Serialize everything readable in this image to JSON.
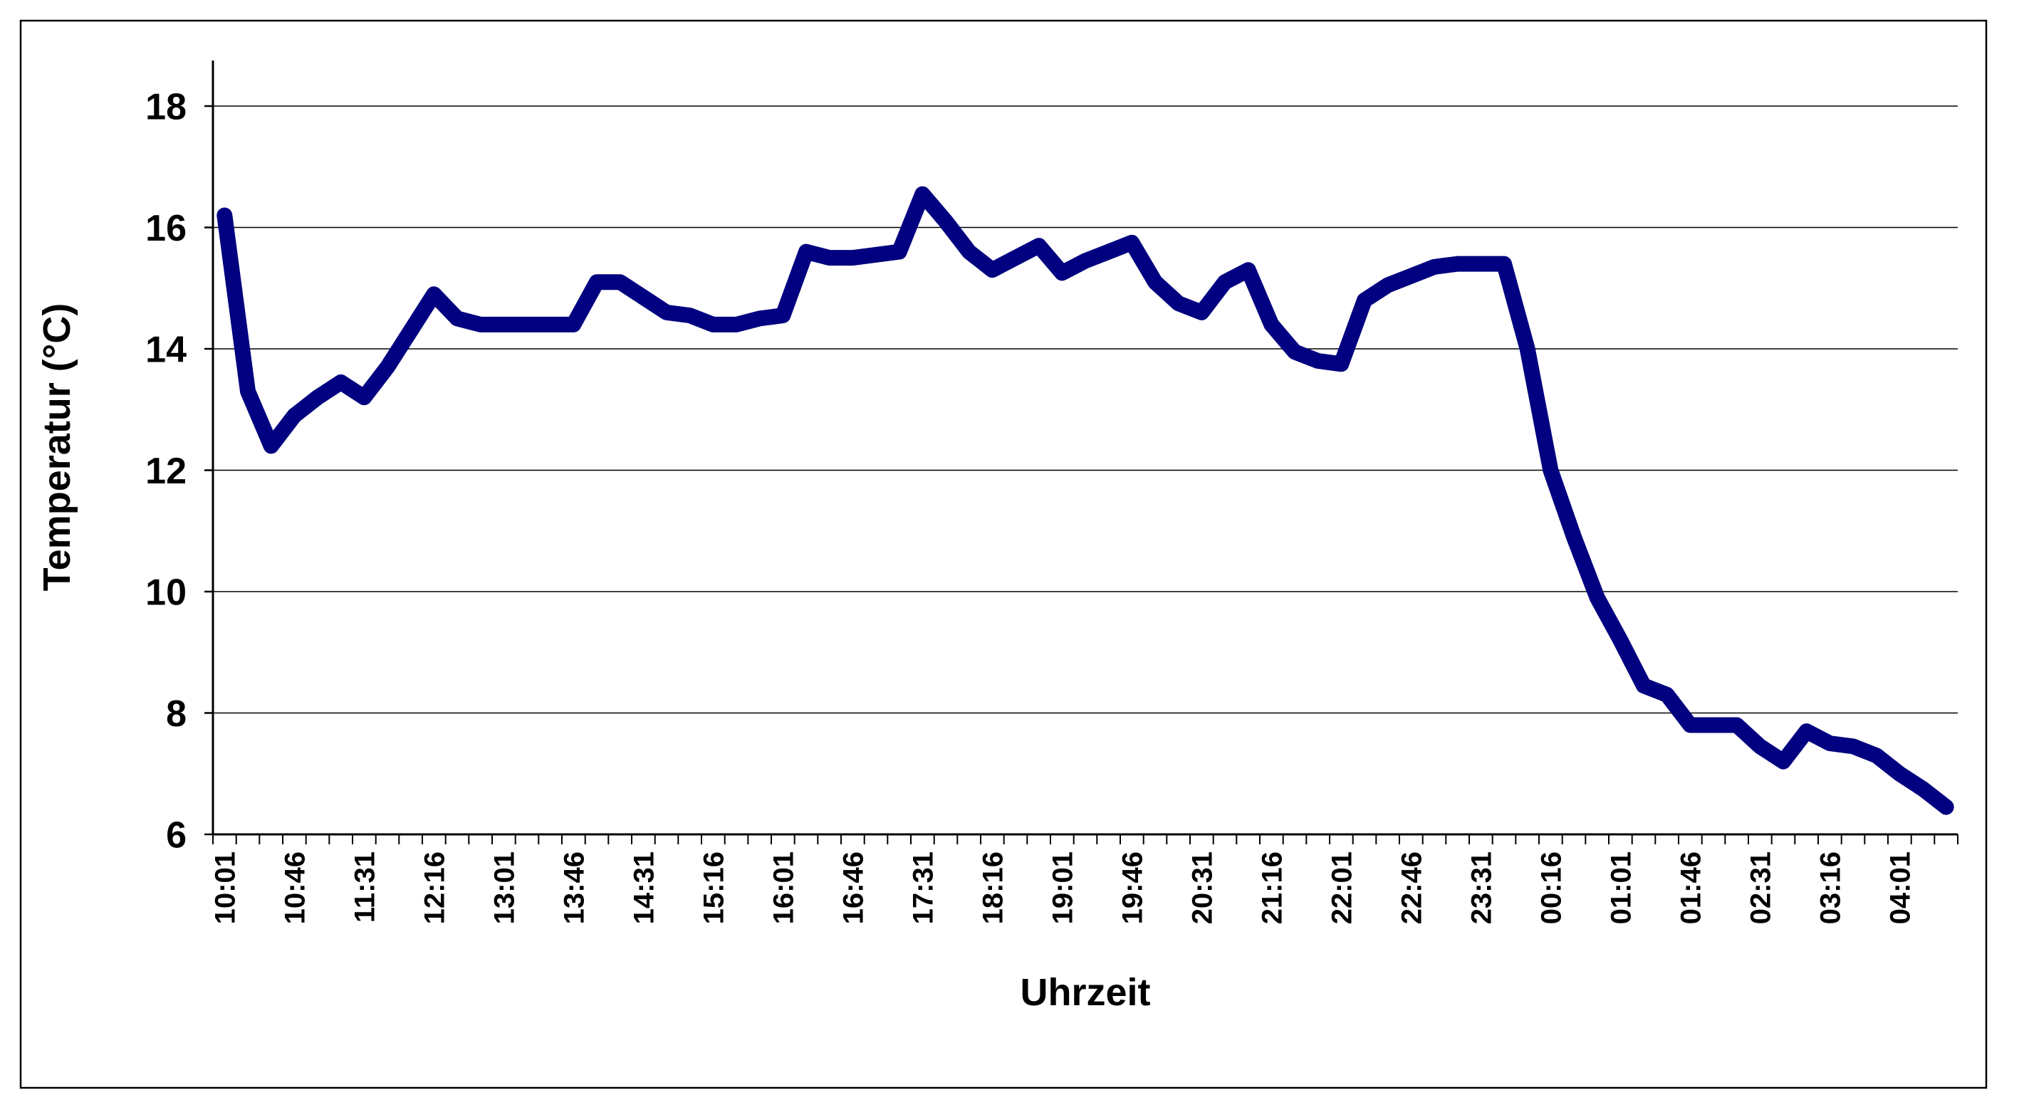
{
  "chart_data": {
    "type": "line",
    "title": "",
    "xlabel": "Uhrzeit",
    "ylabel": "Temperatur (°C)",
    "legend": "none",
    "grid": "horizontal",
    "background": "#ffffff",
    "frame_color": "#000000",
    "series_color": "#000080",
    "ylim": [
      6,
      18.75
    ],
    "yticks": [
      6,
      8,
      10,
      12,
      14,
      16,
      18
    ],
    "x_label_interval": 3,
    "x": [
      "10:01",
      "10:16",
      "10:31",
      "10:46",
      "11:01",
      "11:16",
      "11:31",
      "11:46",
      "12:01",
      "12:16",
      "12:31",
      "12:46",
      "13:01",
      "13:16",
      "13:31",
      "13:46",
      "14:01",
      "14:16",
      "14:31",
      "14:46",
      "15:01",
      "15:16",
      "15:31",
      "15:46",
      "16:01",
      "16:16",
      "16:31",
      "16:46",
      "17:01",
      "17:16",
      "17:31",
      "17:46",
      "18:01",
      "18:16",
      "18:31",
      "18:46",
      "19:01",
      "19:16",
      "19:31",
      "19:46",
      "20:01",
      "20:16",
      "20:31",
      "20:46",
      "21:01",
      "21:16",
      "21:31",
      "21:46",
      "22:01",
      "22:16",
      "22:31",
      "22:46",
      "23:01",
      "23:16",
      "23:31",
      "23:46",
      "00:01",
      "00:16",
      "00:31",
      "00:46",
      "01:01",
      "01:16",
      "01:31",
      "01:46",
      "02:01",
      "02:16",
      "02:31",
      "02:46",
      "03:01",
      "03:16",
      "03:31",
      "03:46",
      "04:01",
      "04:16",
      "04:31"
    ],
    "values": [
      16.2,
      13.3,
      12.4,
      12.9,
      13.2,
      13.45,
      13.2,
      13.7,
      14.3,
      14.9,
      14.5,
      14.4,
      14.4,
      14.4,
      14.4,
      14.4,
      15.1,
      15.1,
      14.85,
      14.6,
      14.55,
      14.4,
      14.4,
      14.5,
      14.55,
      15.6,
      15.5,
      15.5,
      15.55,
      15.6,
      16.55,
      16.1,
      15.6,
      15.3,
      15.5,
      15.7,
      15.25,
      15.45,
      15.6,
      15.75,
      15.1,
      14.75,
      14.6,
      15.1,
      15.3,
      14.4,
      13.95,
      13.8,
      13.75,
      14.8,
      15.05,
      15.2,
      15.35,
      15.4,
      15.4,
      15.4,
      14.0,
      12.0,
      10.9,
      9.9,
      9.2,
      8.45,
      8.3,
      7.8,
      7.8,
      7.8,
      7.45,
      7.2,
      7.7,
      7.5,
      7.45,
      7.3,
      7.0,
      6.75,
      6.45
    ]
  }
}
